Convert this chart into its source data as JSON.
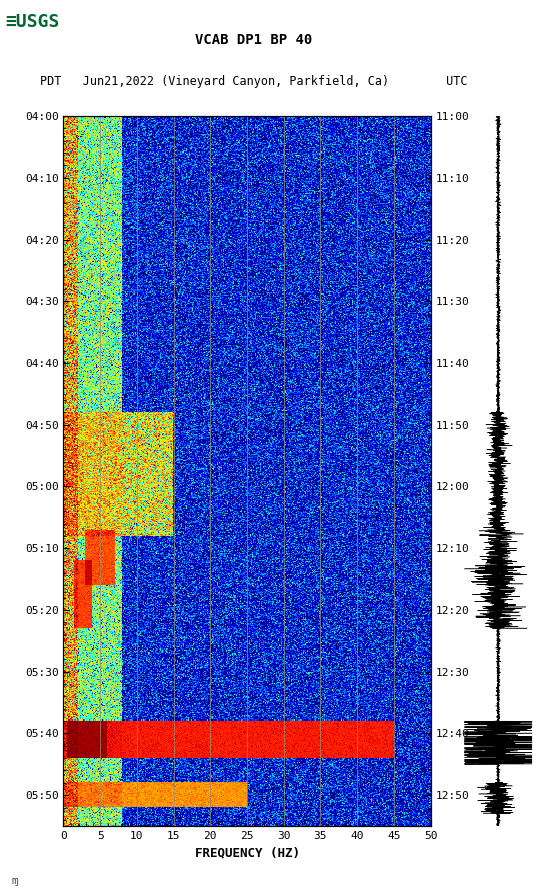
{
  "title_line1": "VCAB DP1 BP 40",
  "title_line2": "PDT   Jun21,2022 (Vineyard Canyon, Parkfield, Ca)        UTC",
  "xlabel": "FREQUENCY (HZ)",
  "ytick_pdt": [
    "04:00",
    "04:10",
    "04:20",
    "04:30",
    "04:40",
    "04:50",
    "05:00",
    "05:10",
    "05:20",
    "05:30",
    "05:40",
    "05:50"
  ],
  "ytick_utc": [
    "11:00",
    "11:10",
    "11:20",
    "11:30",
    "11:40",
    "11:50",
    "12:00",
    "12:10",
    "12:20",
    "12:30",
    "12:40",
    "12:50"
  ],
  "vgrid_freqs": [
    5,
    10,
    15,
    20,
    25,
    30,
    35,
    40,
    45
  ],
  "pdt_times": [
    0,
    10,
    20,
    30,
    40,
    50,
    60,
    70,
    80,
    90,
    100,
    110
  ],
  "total_minutes": 115,
  "usgs_logo_color": "#006633"
}
